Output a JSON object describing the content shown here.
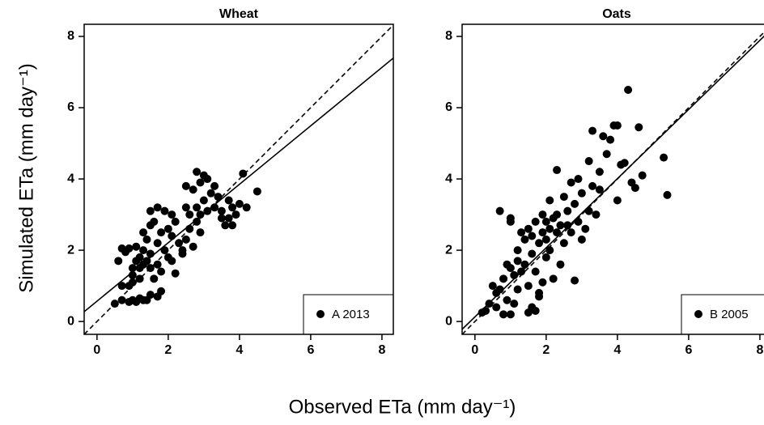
{
  "xlabel": "Observed ETa (mm day⁻¹)",
  "ylabel": "Simulated ETa (mm day⁻¹)",
  "chart_data": [
    {
      "type": "scatter",
      "title": "Wheat",
      "xlim": [
        -0.36,
        8.32
      ],
      "ylim": [
        -0.36,
        8.34
      ],
      "xticks": [
        0,
        2,
        4,
        6,
        8
      ],
      "yticks": [
        0,
        2,
        4,
        6,
        8
      ],
      "legend": "lower right",
      "lines": [
        {
          "slope": 1,
          "intercept": 0,
          "dashed": true
        },
        {
          "slope": 0.82,
          "intercept": 0.57,
          "dashed": false
        }
      ],
      "series": [
        {
          "name": "A 2013",
          "color": "#000000",
          "x": [
            0.5,
            0.7,
            0.9,
            0.9,
            1.0,
            1.0,
            1.1,
            1.2,
            1.3,
            1.4,
            1.5,
            1.7,
            1.8,
            0.7,
            0.6,
            0.7,
            0.8,
            0.9,
            1.0,
            1.1,
            1.1,
            1.2,
            1.2,
            1.3,
            1.3,
            1.3,
            1.4,
            1.4,
            1.5,
            1.5,
            1.5,
            1.5,
            1.6,
            1.6,
            1.7,
            1.7,
            1.7,
            1.8,
            1.8,
            1.9,
            1.9,
            2.0,
            2.0,
            2.1,
            2.1,
            2.1,
            2.2,
            2.2,
            2.3,
            2.4,
            2.5,
            2.5,
            2.5,
            2.6,
            2.6,
            2.7,
            2.7,
            2.8,
            2.8,
            2.8,
            2.9,
            2.9,
            3.0,
            3.0,
            3.1,
            3.1,
            3.2,
            3.3,
            3.3,
            3.4,
            3.5,
            3.5,
            3.6,
            3.7,
            3.7,
            3.8,
            3.8,
            3.9,
            4.0,
            4.1,
            4.2,
            4.5,
            2.4,
            1.2,
            1.0,
            2.9
          ],
          "values": [
            0.5,
            0.6,
            0.55,
            1.0,
            0.6,
            1.1,
            0.55,
            0.65,
            0.6,
            0.6,
            0.75,
            0.7,
            0.85,
            1.0,
            1.7,
            2.05,
            1.95,
            2.05,
            1.5,
            1.7,
            2.1,
            1.5,
            1.8,
            1.6,
            2.0,
            2.5,
            1.7,
            2.3,
            1.5,
            1.9,
            2.7,
            3.1,
            2.8,
            1.2,
            1.6,
            2.2,
            3.2,
            2.5,
            1.4,
            2.0,
            3.1,
            1.8,
            2.6,
            1.7,
            2.4,
            3.0,
            2.8,
            1.35,
            2.2,
            1.9,
            2.3,
            3.2,
            3.8,
            2.6,
            3.0,
            2.1,
            3.7,
            2.8,
            3.2,
            4.2,
            3.0,
            3.9,
            4.1,
            3.4,
            4.0,
            3.1,
            3.6,
            3.2,
            3.8,
            3.5,
            2.9,
            3.1,
            2.7,
            2.9,
            3.4,
            3.2,
            2.7,
            3.0,
            3.3,
            4.15,
            3.2,
            3.65,
            2.0,
            1.2,
            1.3,
            2.5
          ]
        }
      ]
    },
    {
      "type": "scatter",
      "title": "Oats",
      "xlim": [
        -0.36,
        8.32
      ],
      "ylim": [
        -0.36,
        8.34
      ],
      "xticks": [
        0,
        2,
        4,
        6,
        8
      ],
      "yticks": [
        0,
        2,
        4,
        6,
        8
      ],
      "legend": "lower right",
      "lines": [
        {
          "slope": 1,
          "intercept": 0,
          "dashed": true
        },
        {
          "slope": 0.97,
          "intercept": 0.13,
          "dashed": false
        }
      ],
      "series": [
        {
          "name": "B 2005",
          "color": "#000000",
          "x": [
            0.2,
            0.3,
            0.4,
            0.5,
            0.6,
            0.6,
            0.7,
            0.7,
            0.8,
            0.8,
            0.9,
            0.9,
            1.0,
            1.0,
            1.0,
            1.0,
            1.1,
            1.1,
            1.2,
            1.2,
            1.2,
            1.3,
            1.3,
            1.4,
            1.4,
            1.5,
            1.5,
            1.5,
            1.6,
            1.6,
            1.6,
            1.7,
            1.7,
            1.7,
            1.8,
            1.8,
            1.8,
            1.9,
            1.9,
            1.9,
            2.0,
            2.0,
            2.0,
            2.1,
            2.1,
            2.1,
            2.2,
            2.2,
            2.3,
            2.3,
            2.3,
            2.4,
            2.4,
            2.5,
            2.5,
            2.6,
            2.6,
            2.7,
            2.7,
            2.8,
            2.8,
            2.9,
            2.9,
            3.0,
            3.0,
            3.1,
            3.2,
            3.2,
            3.3,
            3.3,
            3.4,
            3.5,
            3.5,
            3.6,
            3.7,
            3.8,
            3.9,
            4.0,
            4.0,
            4.1,
            4.2,
            4.3,
            4.4,
            4.5,
            4.6,
            4.7,
            5.3,
            5.4
          ],
          "values": [
            0.25,
            0.3,
            0.5,
            1.0,
            0.4,
            0.8,
            0.9,
            3.1,
            0.2,
            1.2,
            1.6,
            0.6,
            1.5,
            0.2,
            2.8,
            2.9,
            1.3,
            0.5,
            2.0,
            1.7,
            0.9,
            2.5,
            1.4,
            2.3,
            1.6,
            1.0,
            2.6,
            0.25,
            2.4,
            0.4,
            1.9,
            0.3,
            2.8,
            1.4,
            2.2,
            0.8,
            0.7,
            2.5,
            3.0,
            1.1,
            2.3,
            2.8,
            1.8,
            2.6,
            3.4,
            2.0,
            2.9,
            1.2,
            2.5,
            4.25,
            3.0,
            2.7,
            1.6,
            3.5,
            2.2,
            3.1,
            2.7,
            3.9,
            2.5,
            1.15,
            3.3,
            4.0,
            2.8,
            3.6,
            2.3,
            2.6,
            4.5,
            3.1,
            5.35,
            3.8,
            3.0,
            4.2,
            3.7,
            5.2,
            4.7,
            5.1,
            5.5,
            5.5,
            3.4,
            4.4,
            4.45,
            6.5,
            3.9,
            3.75,
            5.45,
            4.1,
            4.6,
            3.55
          ]
        }
      ]
    }
  ]
}
